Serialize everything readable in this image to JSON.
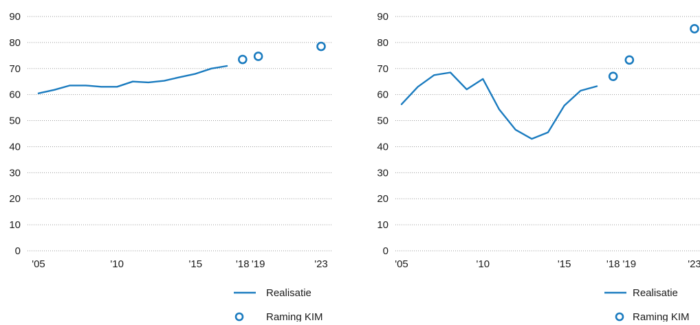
{
  "chart_data": [
    {
      "type": "line",
      "x_ticks": [
        "'05",
        "'10",
        "'15",
        "'18",
        "'19",
        "'23"
      ],
      "y_ticks": [
        "0",
        "10",
        "20",
        "30",
        "40",
        "50",
        "60",
        "70",
        "80",
        "90"
      ],
      "ylim": [
        0,
        90
      ],
      "xlim": [
        2004.5,
        2023.5
      ],
      "grid": "horizontal dotted",
      "legend_placement": "bottom-right",
      "series": [
        {
          "name": "Realisatie",
          "style": "line",
          "color": "#1a7bbf",
          "x": [
            2005,
            2006,
            2007,
            2008,
            2009,
            2010,
            2011,
            2012,
            2013,
            2014,
            2015,
            2016,
            2017
          ],
          "y": [
            60.5,
            61.8,
            63.5,
            63.5,
            63.0,
            63.0,
            65.0,
            64.7,
            65.3,
            66.7,
            68.0,
            70.0,
            71.0
          ]
        },
        {
          "name": "Raming KIM",
          "style": "marker",
          "color": "#1a7bbf",
          "x": [
            2018,
            2019,
            2023
          ],
          "y": [
            73.5,
            74.7,
            78.5
          ]
        }
      ]
    },
    {
      "type": "line",
      "x_ticks": [
        "'05",
        "'10",
        "'15",
        "'18",
        "'19",
        "'23"
      ],
      "y_ticks": [
        "0",
        "10",
        "20",
        "30",
        "40",
        "50",
        "60",
        "70",
        "80",
        "90"
      ],
      "ylim": [
        0,
        90
      ],
      "xlim": [
        2004.5,
        2023.5
      ],
      "grid": "horizontal dotted",
      "legend_placement": "bottom-right",
      "series": [
        {
          "name": "Realisatie",
          "style": "line",
          "color": "#1a7bbf",
          "x": [
            2005,
            2006,
            2007,
            2008,
            2009,
            2010,
            2011,
            2012,
            2013,
            2014,
            2015,
            2016,
            2017
          ],
          "y": [
            56.3,
            63.0,
            67.5,
            68.5,
            62.0,
            66.0,
            54.3,
            46.5,
            43.0,
            45.5,
            55.8,
            61.5,
            63.2
          ]
        },
        {
          "name": "Raming KIM",
          "style": "marker",
          "color": "#1a7bbf",
          "x": [
            2018,
            2019,
            2023
          ],
          "y": [
            67.0,
            73.3,
            85.3
          ]
        }
      ]
    }
  ]
}
